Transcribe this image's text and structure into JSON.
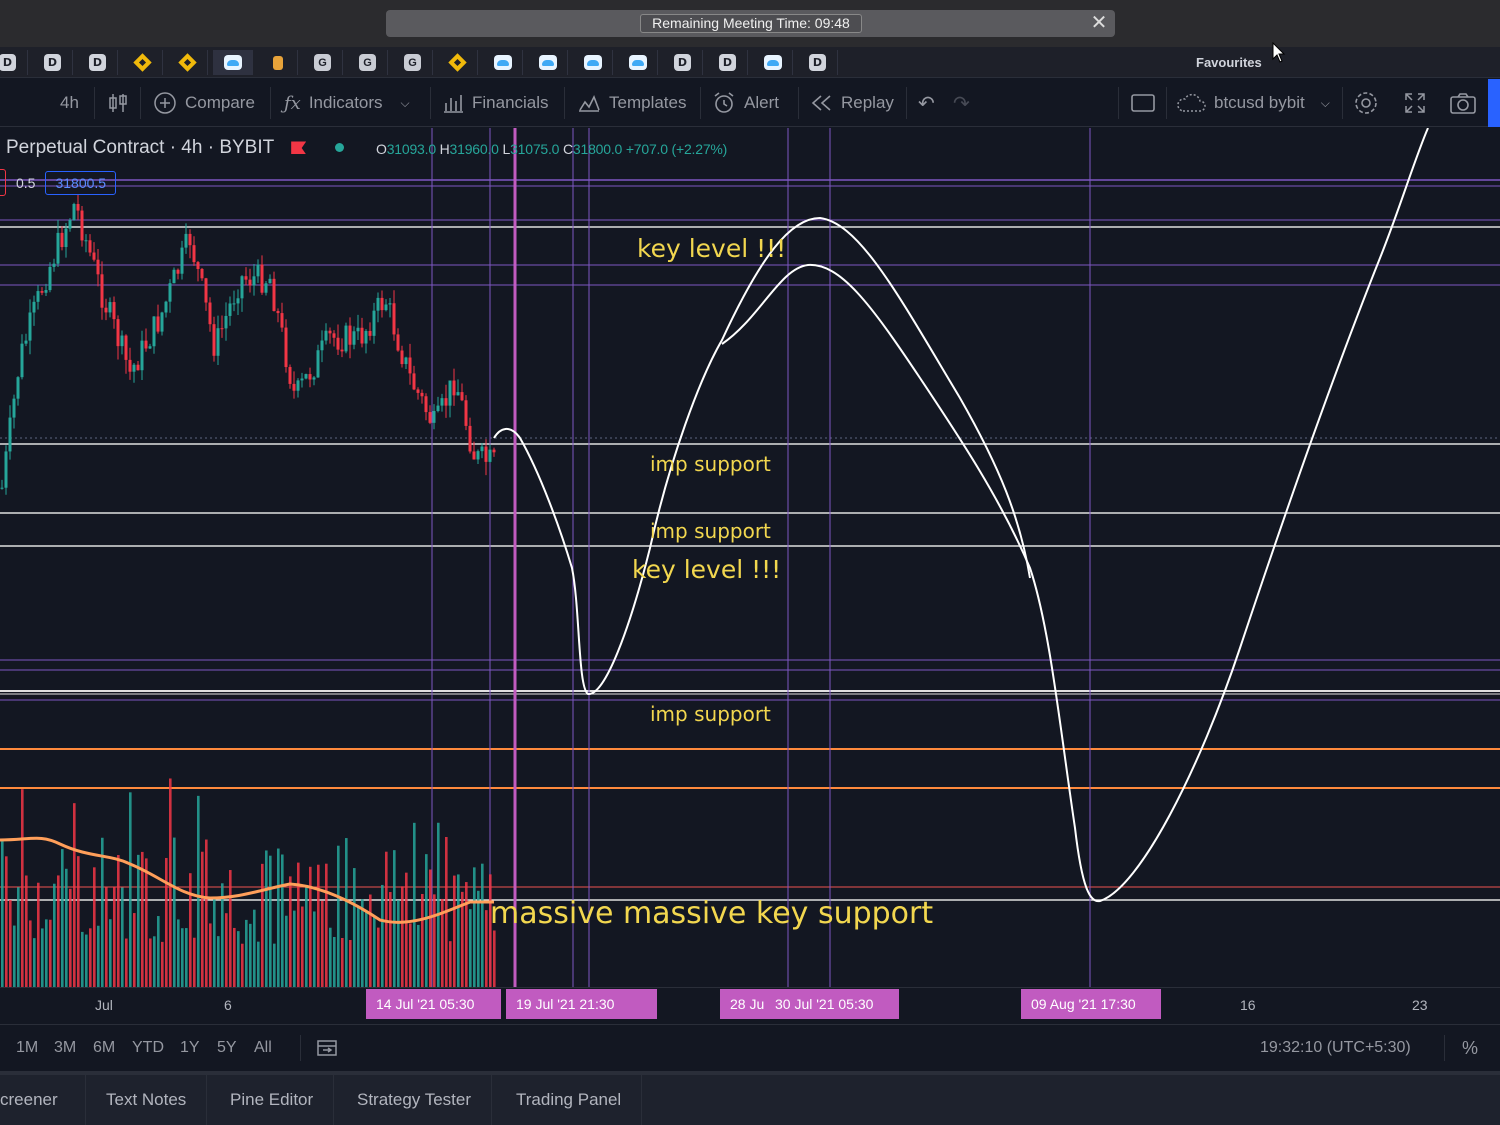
{
  "banner": {
    "text": "Remaining Meeting Time: 09:48",
    "close_icon": "close-icon"
  },
  "favourites": {
    "label": "Favourites",
    "items": [
      {
        "icon": "d-icon",
        "text": "D"
      },
      {
        "icon": "d-icon",
        "text": "D"
      },
      {
        "icon": "d-icon",
        "text": "D"
      },
      {
        "icon": "binance-icon",
        "text": ""
      },
      {
        "icon": "binance-icon",
        "text": ""
      },
      {
        "icon": "cloud-icon",
        "text": "",
        "active": true
      },
      {
        "icon": "bitcoin-icon",
        "text": ""
      },
      {
        "icon": "g-icon",
        "text": "G"
      },
      {
        "icon": "g-icon",
        "text": "G"
      },
      {
        "icon": "g-icon",
        "text": "G"
      },
      {
        "icon": "binance-icon",
        "text": ""
      },
      {
        "icon": "cloud-icon",
        "text": ""
      },
      {
        "icon": "cloud-icon",
        "text": ""
      },
      {
        "icon": "cloud-icon",
        "text": ""
      },
      {
        "icon": "cloud-icon",
        "text": ""
      },
      {
        "icon": "d-icon",
        "text": "D"
      },
      {
        "icon": "d-icon",
        "text": "D"
      },
      {
        "icon": "cloud-icon",
        "text": ""
      },
      {
        "icon": "d-icon",
        "text": "D"
      }
    ]
  },
  "toolbar": {
    "interval": "4h",
    "compare": "Compare",
    "indicators": "Indicators",
    "financials": "Financials",
    "templates": "Templates",
    "alert": "Alert",
    "replay": "Replay",
    "layout_name": "btcusd bybit"
  },
  "legend": {
    "symbol": "Perpetual Contract · 4h · BYBIT",
    "open_label": "O",
    "open": "31093.0",
    "high_label": "H",
    "high": "31960.0",
    "low_label": "L",
    "low": "31075.0",
    "close_label": "C",
    "close": "31800.0",
    "change": "+707.0 (+2.27%)",
    "step": "0.5",
    "price": "31800.5"
  },
  "annotations": {
    "key_level_top": "key level !!!",
    "imp_support_1": "imp support",
    "imp_support_2": "imp support",
    "key_level_mid": "key level !!!",
    "imp_support_3": "imp support",
    "massive": "massive massive key support"
  },
  "time_axis": {
    "ticks": [
      "Jul",
      "6",
      "16",
      "23"
    ],
    "labels": [
      "14 Jul '21   05:30",
      "19 Jul '21   21:30",
      "28 Ju",
      "30 Jul '21   05:30",
      "09 Aug '21   17:30"
    ]
  },
  "ranges": [
    "1M",
    "3M",
    "6M",
    "YTD",
    "1Y",
    "5Y",
    "All"
  ],
  "clock": "19:32:10 (UTC+5:30)",
  "percent": "%",
  "bottom_tabs": [
    "creener",
    "Text Notes",
    "Pine Editor",
    "Strategy Tester",
    "Trading Panel"
  ],
  "colors": {
    "up": "#26a69a",
    "down": "#f23645",
    "annotation": "#f2d74f",
    "marker": "#c15bc0",
    "accent": "#2962ff"
  }
}
